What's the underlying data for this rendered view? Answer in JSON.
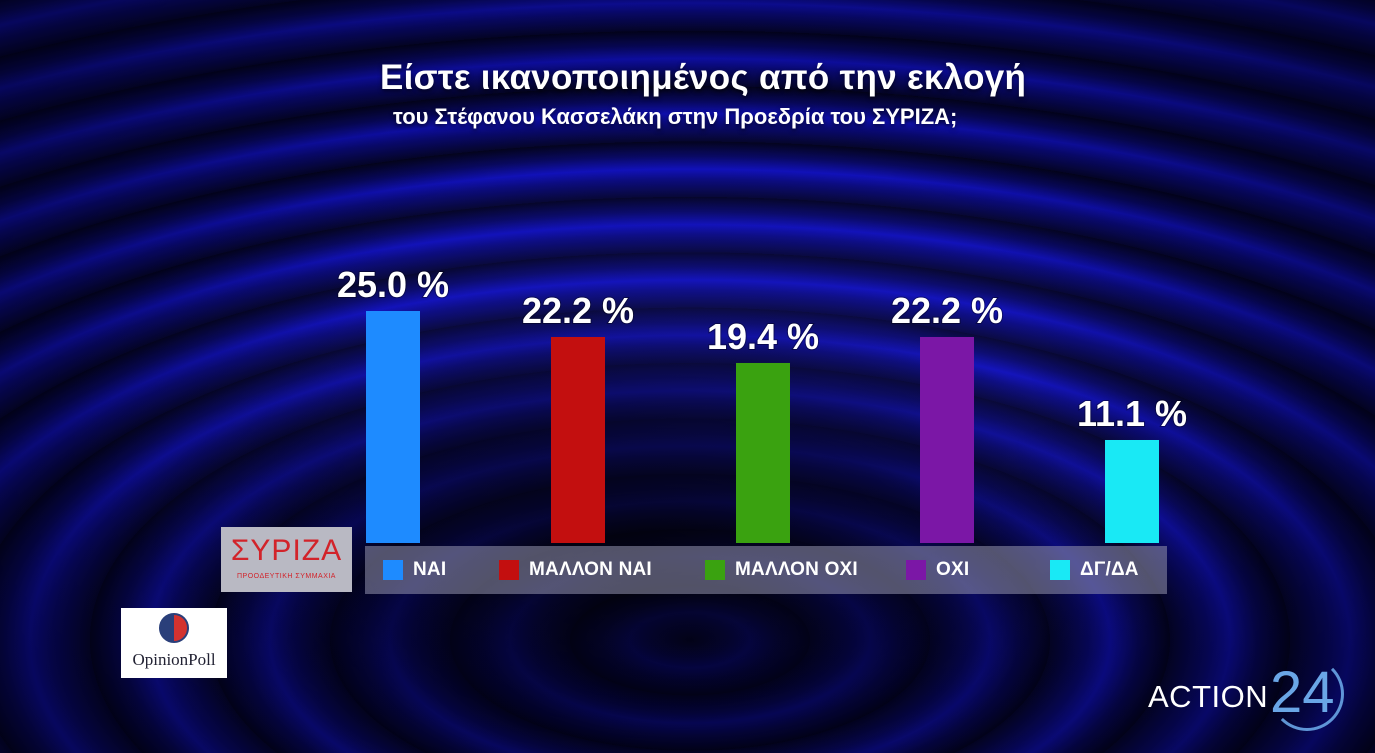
{
  "chart_data": {
    "type": "bar",
    "title": "Είστε ικανοποιημένος από την εκλογή",
    "subtitle": "του Στέφανου Κασσελάκη στην Προεδρία  του ΣΥΡΙΖΑ;",
    "categories": [
      "ΝΑΙ",
      "ΜΑΛΛΟΝ ΝΑΙ",
      "ΜΑΛΛΟΝ ΟΧΙ",
      "ΟΧΙ",
      "ΔΓ/ΔΑ"
    ],
    "values": [
      25.0,
      22.2,
      19.4,
      22.2,
      11.1
    ],
    "value_labels": [
      "25.0 %",
      "22.2 %",
      "19.4 %",
      "22.2 %",
      "11.1 %"
    ],
    "colors": [
      "#1e8bff",
      "#c30f0f",
      "#3aa210",
      "#7b17a6",
      "#19e9f5"
    ],
    "legend_position": "bottom"
  },
  "logos": {
    "syriza": {
      "word": "ΣΥΡΙΖΑ",
      "tagline": "ΠΡΟΟΔΕΥΤΙΚΗ ΣΥΜΜΑΧΙΑ"
    },
    "pollster": "OpinionPoll",
    "channel": {
      "word": "ACTION",
      "number": "24"
    }
  }
}
